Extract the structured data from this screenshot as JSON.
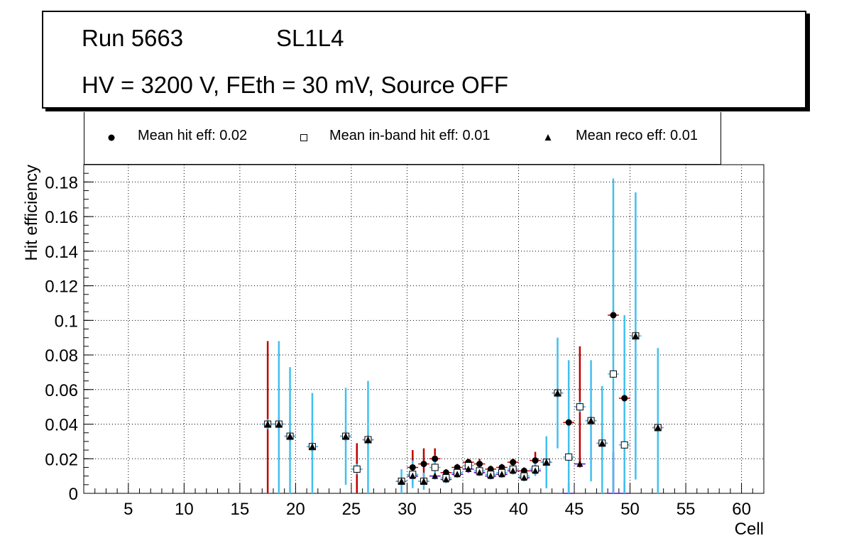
{
  "header": {
    "run": "Run 5663",
    "layer": "SL1L4",
    "conditions": "HV = 3200 V, FEth = 30 mV, Source OFF"
  },
  "legend": {
    "hit": "Mean hit  eff: 0.02",
    "inband": "Mean in-band hit eff: 0.01",
    "reco": "Mean reco eff: 0.01"
  },
  "colors": {
    "hit_error": "#c00000",
    "inband_error": "#40c0f0",
    "reco_error": "#6600cc",
    "grid": "#000000"
  },
  "chart_data": {
    "type": "scatter",
    "title": "",
    "xlabel": "Cell",
    "ylabel": "Hit efficiency",
    "xlim": [
      1,
      62
    ],
    "ylim": [
      0,
      0.19
    ],
    "xticks": [
      5,
      10,
      15,
      20,
      25,
      30,
      35,
      40,
      45,
      50,
      55,
      60
    ],
    "yticks": [
      0,
      0.02,
      0.04,
      0.06,
      0.08,
      0.1,
      0.12,
      0.14,
      0.16,
      0.18
    ],
    "grid": true,
    "series": [
      {
        "name": "Mean hit  eff: 0.02",
        "marker": "circle",
        "points": [
          {
            "x": 17.5,
            "y": 0.04,
            "err": 0.048
          },
          {
            "x": 18.5,
            "y": 0.04,
            "err": 0.004
          },
          {
            "x": 19.5,
            "y": 0.033,
            "err": 0.003
          },
          {
            "x": 21.5,
            "y": 0.027,
            "err": 0.003
          },
          {
            "x": 24.5,
            "y": 0.033,
            "err": 0.003
          },
          {
            "x": 25.5,
            "y": 0.014,
            "err": 0.015
          },
          {
            "x": 26.5,
            "y": 0.031,
            "err": 0.003
          },
          {
            "x": 29.5,
            "y": 0.007,
            "err": 0.002
          },
          {
            "x": 30.5,
            "y": 0.015,
            "err": 0.01
          },
          {
            "x": 31.5,
            "y": 0.017,
            "err": 0.009
          },
          {
            "x": 32.5,
            "y": 0.02,
            "err": 0.006
          },
          {
            "x": 33.5,
            "y": 0.012,
            "err": 0.002
          },
          {
            "x": 34.5,
            "y": 0.015,
            "err": 0.002
          },
          {
            "x": 35.5,
            "y": 0.018,
            "err": 0.002
          },
          {
            "x": 36.5,
            "y": 0.017,
            "err": 0.003
          },
          {
            "x": 37.5,
            "y": 0.014,
            "err": 0.002
          },
          {
            "x": 38.5,
            "y": 0.015,
            "err": 0.002
          },
          {
            "x": 39.5,
            "y": 0.018,
            "err": 0.002
          },
          {
            "x": 40.5,
            "y": 0.013,
            "err": 0.002
          },
          {
            "x": 41.5,
            "y": 0.019,
            "err": 0.005
          },
          {
            "x": 42.5,
            "y": 0.018,
            "err": 0.002
          },
          {
            "x": 43.5,
            "y": 0.058,
            "err": 0.003
          },
          {
            "x": 44.5,
            "y": 0.041,
            "err": 0.003
          },
          {
            "x": 45.5,
            "y": 0.05,
            "err": 0.035
          },
          {
            "x": 46.5,
            "y": 0.042,
            "err": 0.003
          },
          {
            "x": 47.5,
            "y": 0.029,
            "err": 0.003
          },
          {
            "x": 48.5,
            "y": 0.103,
            "err": 0.003
          },
          {
            "x": 49.5,
            "y": 0.055,
            "err": 0.003
          },
          {
            "x": 50.5,
            "y": 0.091,
            "err": 0.003
          },
          {
            "x": 52.5,
            "y": 0.038,
            "err": 0.003
          }
        ]
      },
      {
        "name": "Mean in-band hit eff: 0.01",
        "marker": "open-square",
        "points": [
          {
            "x": 17.5,
            "y": 0.04,
            "err": 0.003
          },
          {
            "x": 18.5,
            "y": 0.04,
            "err": 0.048
          },
          {
            "x": 19.5,
            "y": 0.033,
            "err": 0.04
          },
          {
            "x": 21.5,
            "y": 0.027,
            "err": 0.031
          },
          {
            "x": 24.5,
            "y": 0.033,
            "err": 0.028
          },
          {
            "x": 25.5,
            "y": 0.014,
            "err": 0.003
          },
          {
            "x": 26.5,
            "y": 0.031,
            "err": 0.034
          },
          {
            "x": 29.5,
            "y": 0.007,
            "err": 0.007
          },
          {
            "x": 30.5,
            "y": 0.011,
            "err": 0.008
          },
          {
            "x": 31.5,
            "y": 0.007,
            "err": 0.005
          },
          {
            "x": 32.5,
            "y": 0.015,
            "err": 0.007
          },
          {
            "x": 33.5,
            "y": 0.009,
            "err": 0.003
          },
          {
            "x": 34.5,
            "y": 0.012,
            "err": 0.003
          },
          {
            "x": 35.5,
            "y": 0.016,
            "err": 0.003
          },
          {
            "x": 36.5,
            "y": 0.013,
            "err": 0.003
          },
          {
            "x": 37.5,
            "y": 0.011,
            "err": 0.003
          },
          {
            "x": 38.5,
            "y": 0.012,
            "err": 0.003
          },
          {
            "x": 39.5,
            "y": 0.014,
            "err": 0.003
          },
          {
            "x": 40.5,
            "y": 0.01,
            "err": 0.003
          },
          {
            "x": 41.5,
            "y": 0.014,
            "err": 0.004
          },
          {
            "x": 42.5,
            "y": 0.018,
            "err": 0.015
          },
          {
            "x": 43.5,
            "y": 0.058,
            "err": 0.032
          },
          {
            "x": 44.5,
            "y": 0.021,
            "err": 0.056
          },
          {
            "x": 45.5,
            "y": 0.05,
            "err": 0.003
          },
          {
            "x": 46.5,
            "y": 0.042,
            "err": 0.035
          },
          {
            "x": 47.5,
            "y": 0.029,
            "err": 0.033
          },
          {
            "x": 48.5,
            "y": 0.069,
            "err": 0.113
          },
          {
            "x": 49.5,
            "y": 0.028,
            "err": 0.075
          },
          {
            "x": 50.5,
            "y": 0.091,
            "err": 0.083
          },
          {
            "x": 52.5,
            "y": 0.038,
            "err": 0.046
          }
        ]
      },
      {
        "name": "Mean reco eff: 0.01",
        "marker": "triangle",
        "points": [
          {
            "x": 17.5,
            "y": 0.04,
            "err": 0.002
          },
          {
            "x": 18.5,
            "y": 0.04,
            "err": 0.002
          },
          {
            "x": 19.5,
            "y": 0.033,
            "err": 0.002
          },
          {
            "x": 21.5,
            "y": 0.027,
            "err": 0.002
          },
          {
            "x": 24.5,
            "y": 0.033,
            "err": 0.002
          },
          {
            "x": 26.5,
            "y": 0.031,
            "err": 0.002
          },
          {
            "x": 29.5,
            "y": 0.007,
            "err": 0.002
          },
          {
            "x": 30.5,
            "y": 0.01,
            "err": 0.002
          },
          {
            "x": 31.5,
            "y": 0.007,
            "err": 0.002
          },
          {
            "x": 32.5,
            "y": 0.01,
            "err": 0.002
          },
          {
            "x": 33.5,
            "y": 0.008,
            "err": 0.002
          },
          {
            "x": 34.5,
            "y": 0.011,
            "err": 0.002
          },
          {
            "x": 35.5,
            "y": 0.014,
            "err": 0.002
          },
          {
            "x": 36.5,
            "y": 0.012,
            "err": 0.002
          },
          {
            "x": 37.5,
            "y": 0.01,
            "err": 0.002
          },
          {
            "x": 38.5,
            "y": 0.011,
            "err": 0.002
          },
          {
            "x": 39.5,
            "y": 0.013,
            "err": 0.002
          },
          {
            "x": 40.5,
            "y": 0.009,
            "err": 0.002
          },
          {
            "x": 41.5,
            "y": 0.013,
            "err": 0.002
          },
          {
            "x": 42.5,
            "y": 0.018,
            "err": 0.002
          },
          {
            "x": 43.5,
            "y": 0.058,
            "err": 0.002
          },
          {
            "x": 44.5,
            "y": 0.0,
            "err": 0.006
          },
          {
            "x": 45.5,
            "y": 0.017,
            "err": 0.002
          },
          {
            "x": 46.5,
            "y": 0.042,
            "err": 0.002
          },
          {
            "x": 47.5,
            "y": 0.029,
            "err": 0.002
          },
          {
            "x": 48.5,
            "y": 0.0,
            "err": 0.024
          },
          {
            "x": 49.5,
            "y": 0.0,
            "err": 0.007
          },
          {
            "x": 50.5,
            "y": 0.091,
            "err": 0.002
          },
          {
            "x": 52.5,
            "y": 0.038,
            "err": 0.002
          }
        ]
      }
    ]
  }
}
